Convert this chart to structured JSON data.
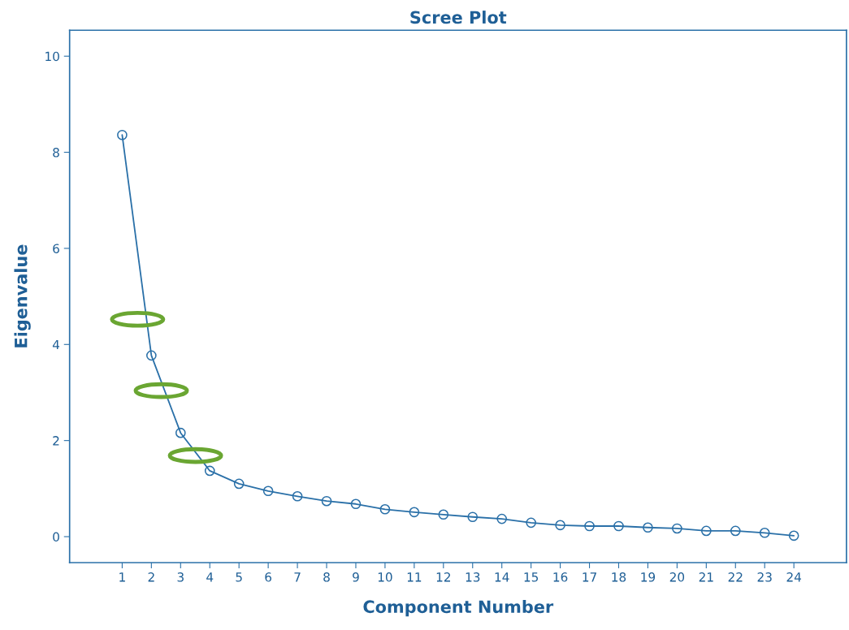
{
  "chart_data": {
    "type": "line",
    "title": "Scree Plot",
    "xlabel": "Component Number",
    "ylabel": "Eigenvalue",
    "x": [
      1,
      2,
      3,
      4,
      5,
      6,
      7,
      8,
      9,
      10,
      11,
      12,
      13,
      14,
      15,
      16,
      17,
      18,
      19,
      20,
      21,
      22,
      23,
      24
    ],
    "series": [
      {
        "color": "#2a70a8",
        "values": [
          8.36,
          3.77,
          2.16,
          1.37,
          1.1,
          0.95,
          0.84,
          0.74,
          0.68,
          0.57,
          0.51,
          0.46,
          0.41,
          0.37,
          0.29,
          0.24,
          0.22,
          0.22,
          0.19,
          0.17,
          0.12,
          0.12,
          0.08,
          0.02
        ]
      }
    ],
    "xlim": [
      -0.8,
      25.8
    ],
    "xticks": [
      1,
      2,
      3,
      4,
      5,
      6,
      7,
      8,
      9,
      10,
      11,
      12,
      13,
      14,
      15,
      16,
      17,
      18,
      19,
      20,
      21,
      22,
      23,
      24
    ],
    "ylim": [
      -0.54,
      10.54
    ],
    "yticks": [
      0,
      2,
      4,
      6,
      8,
      10
    ],
    "marker": "circle",
    "line_style": "solid",
    "grid": false,
    "legend": false
  }
}
